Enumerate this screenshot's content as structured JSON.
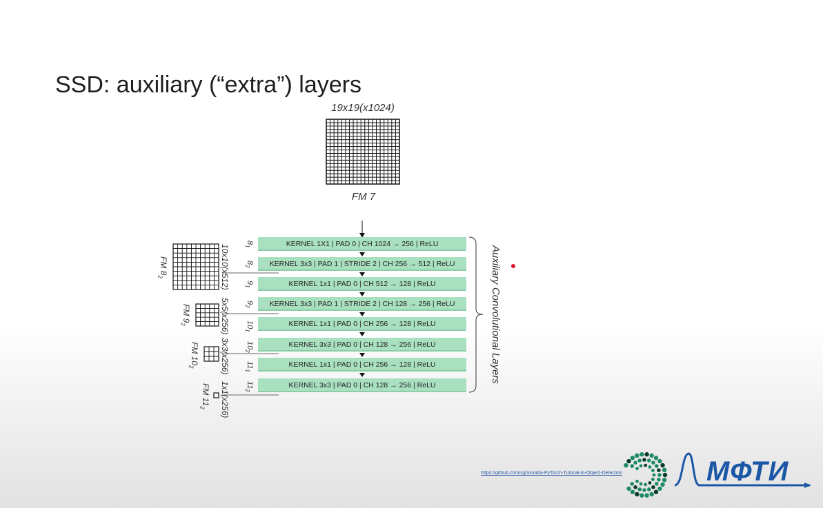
{
  "slide": {
    "title": "SSD: auxiliary (“extra”) layers"
  },
  "fm7": {
    "dims": "19x19(x1024)",
    "label": "FM 7"
  },
  "layers": [
    {
      "index": "8",
      "sub": "1",
      "text": "KERNEL 1X1 | PAD 0 | CH  1024 → 256 | ReLU"
    },
    {
      "index": "8",
      "sub": "2",
      "text": "KERNEL 3x3 | PAD 1 | STRIDE 2 | CH  256 → 512 | ReLU"
    },
    {
      "index": "9",
      "sub": "1",
      "text": "KERNEL 1x1 | PAD 0 | CH  512 → 128 | ReLU"
    },
    {
      "index": "9",
      "sub": "2",
      "text": "KERNEL 3x3 | PAD 1 | STRIDE 2 | CH  128 → 256 | ReLU"
    },
    {
      "index": "10",
      "sub": "1",
      "text": "KERNEL 1x1 | PAD 0 | CH  256 → 128 | ReLU"
    },
    {
      "index": "10",
      "sub": "2",
      "text": "KERNEL 3x3 | PAD 0 | CH  128 → 256 | ReLU"
    },
    {
      "index": "11",
      "sub": "1",
      "text": "KERNEL 1x1 | PAD 0 | CH  256 → 128 | ReLU"
    },
    {
      "index": "11",
      "sub": "2",
      "text": "KERNEL 3x3 | PAD 0 | CH  128 → 256 | ReLU"
    }
  ],
  "feature_maps": [
    {
      "name": "FM 8",
      "sub": "2",
      "dims": "10x10(x512)",
      "grid": 10
    },
    {
      "name": "FM 9",
      "sub": "2",
      "dims": "5x5(x256)",
      "grid": 5
    },
    {
      "name": "FM 10",
      "sub": "2",
      "dims": "3x3(x256)",
      "grid": 3
    },
    {
      "name": "FM 11",
      "sub": "2",
      "dims": "1x1(x256)",
      "grid": 1
    }
  ],
  "bracket_label": "Auxiliary Convolutional Layers",
  "source_link": "https://github.com/sgrvinod/a-PyTorch-Tutorial-to-Object-Detection",
  "logo": {
    "text": "МФТИ"
  },
  "colors": {
    "layer_fill": "#a9e0c0",
    "logo_blue": "#1a57a6",
    "logo_green": "#1d8a64",
    "red_dot": "#e0102a"
  }
}
